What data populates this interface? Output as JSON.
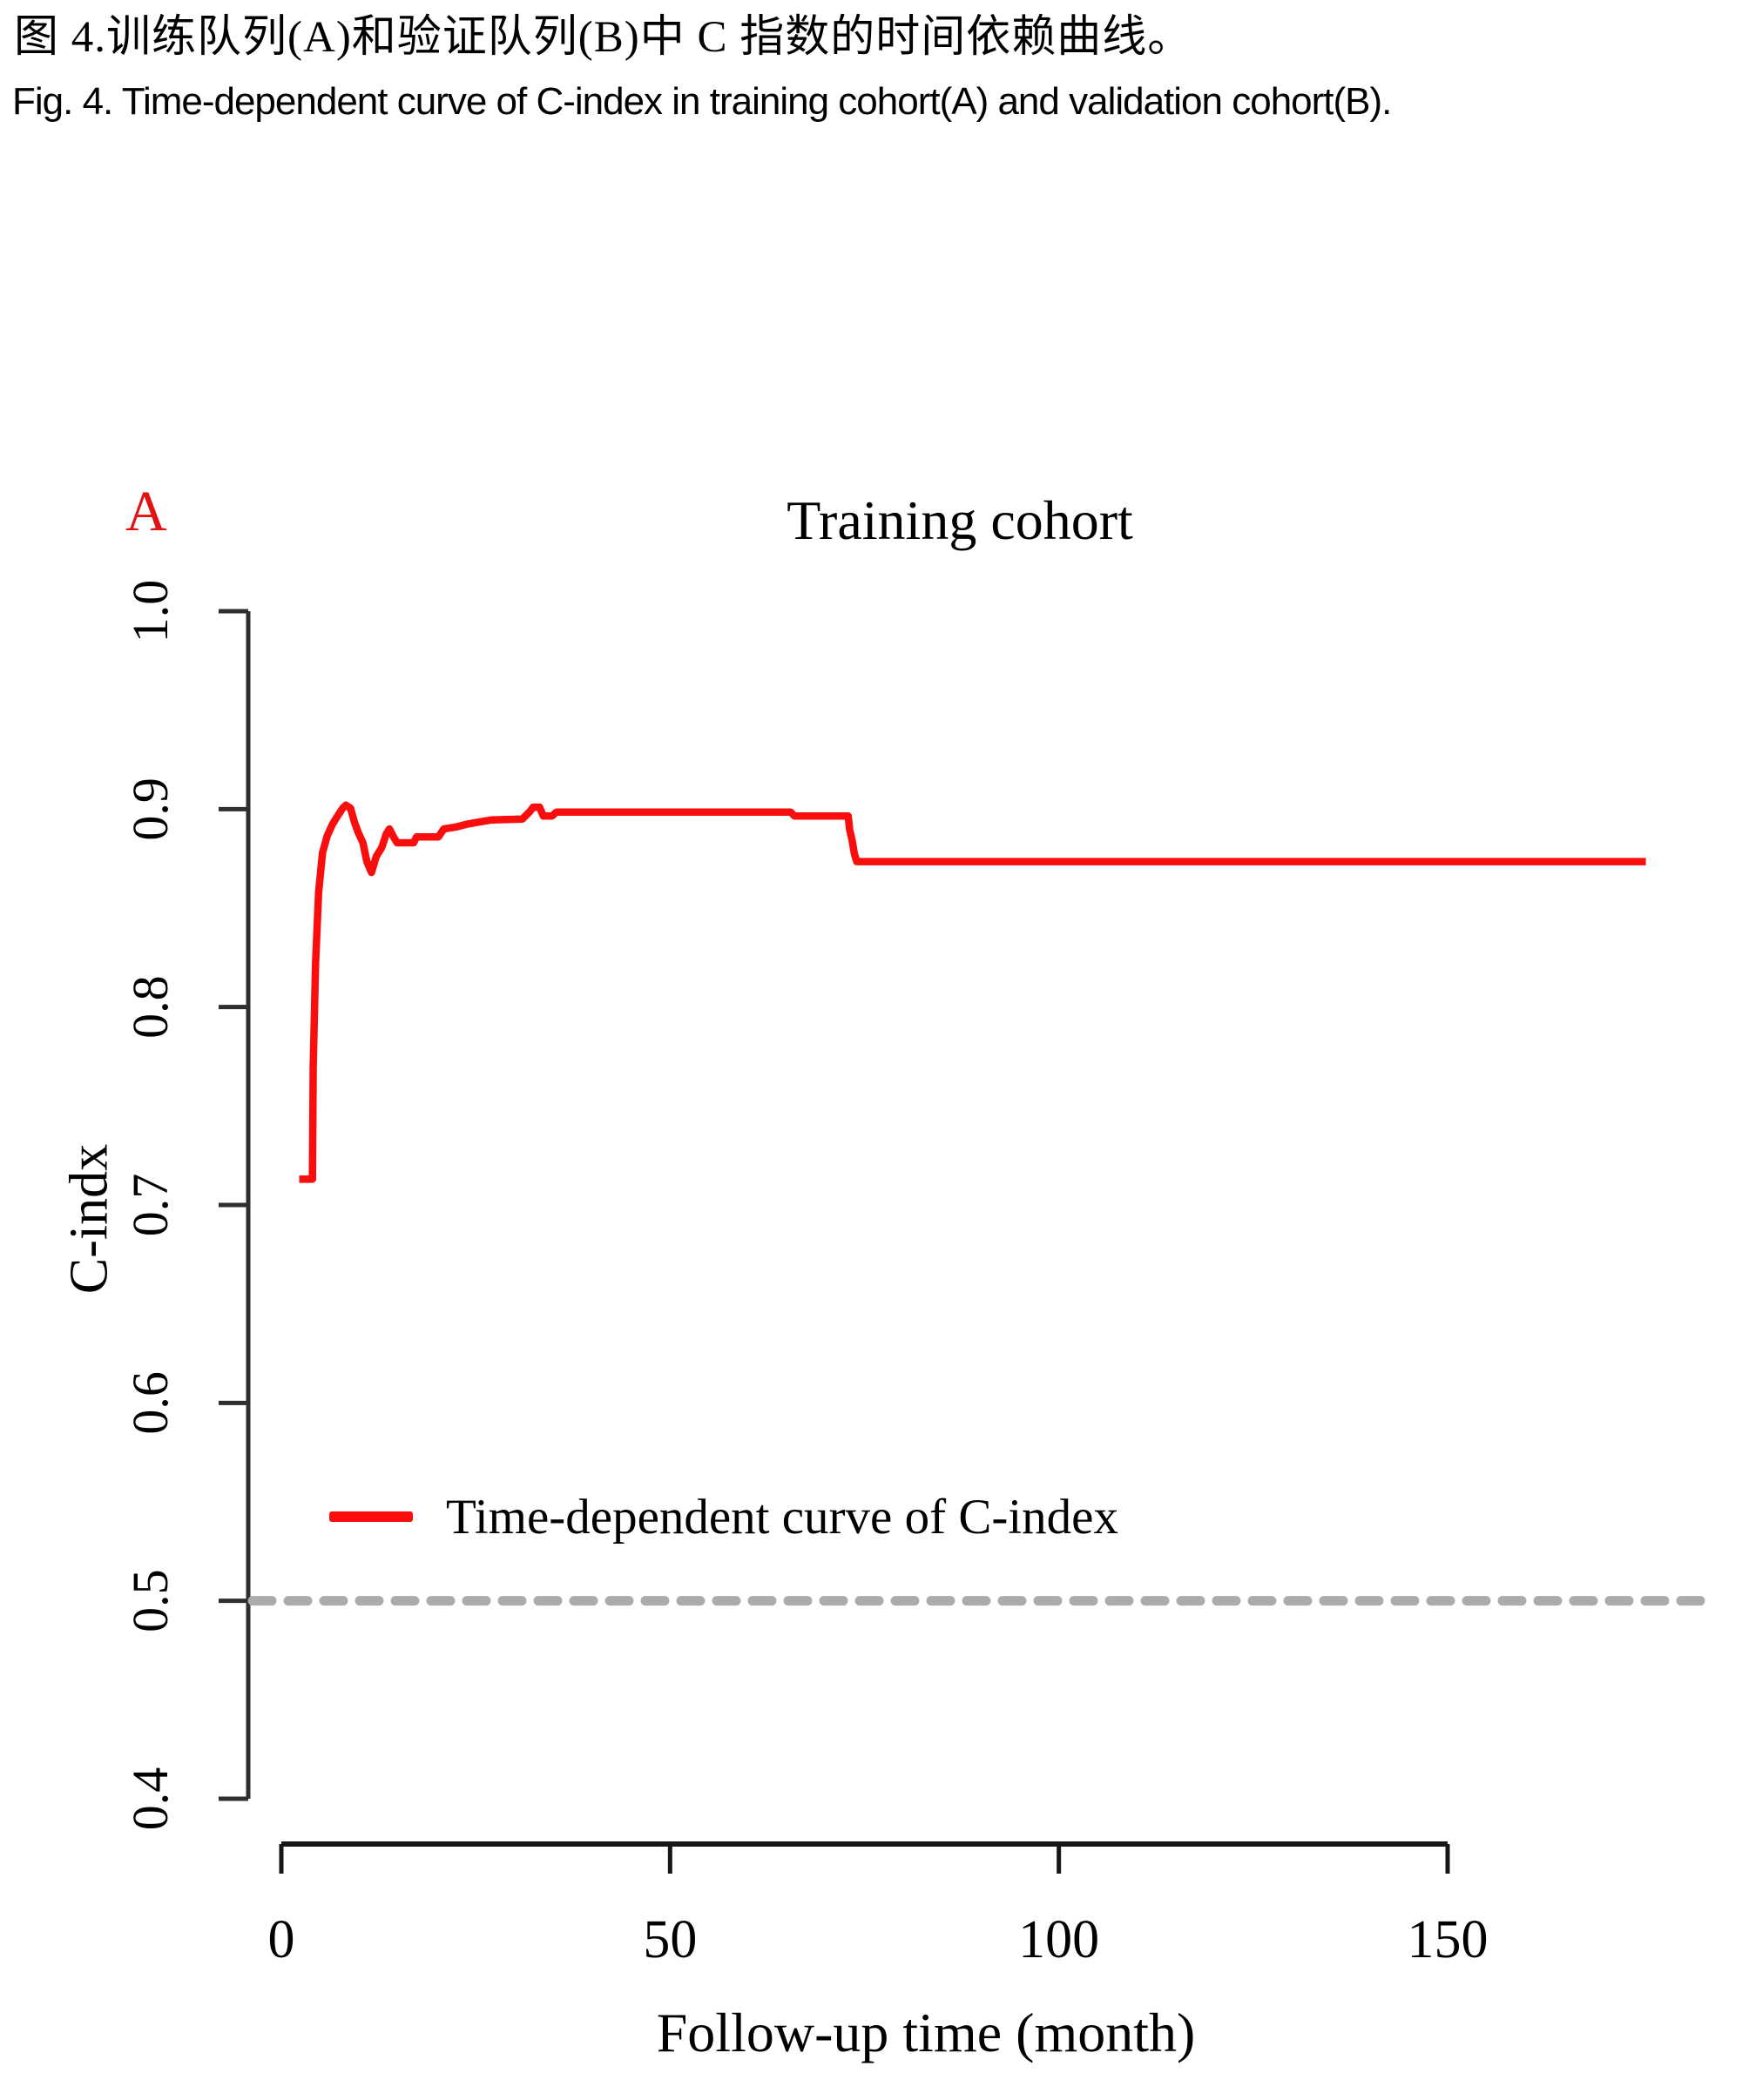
{
  "caption": {
    "zh": "图 4.训练队列(A)和验证队列(B)中 C 指数的时间依赖曲线。",
    "en": "Fig. 4. Time-dependent curve of C-index in training cohort(A) and validation cohort(B)."
  },
  "panel_label": "A",
  "colors": {
    "curve_red": "#f90d0d",
    "panel_letter_red": "#e11212",
    "axis": "#2e2e2e",
    "reference_dots": "#ababab"
  },
  "chart_data": {
    "type": "line",
    "title": "Training cohort",
    "xlabel": "Follow-up time (month)",
    "ylabel": "C-indx",
    "xlim": [
      0,
      178
    ],
    "ylim": [
      0.4,
      1.0
    ],
    "x_ticks": [
      0,
      50,
      100,
      150
    ],
    "y_ticks": [
      "1.0",
      "0.9",
      "0.8",
      "0.7",
      "0.6",
      "0.5",
      "0.4"
    ],
    "grid": false,
    "legend_position": "left-middle",
    "reference_line": {
      "y": 0.5,
      "style": "dotted",
      "color": "#ababab"
    },
    "legend": {
      "label": "Time-dependent curve of C-index",
      "color": "#f90d0d"
    },
    "series": [
      {
        "name": "Time-dependent curve of C-index",
        "color": "#f90d0d",
        "points": [
          [
            2.3,
            0.713
          ],
          [
            4.0,
            0.713
          ],
          [
            4.1,
            0.77
          ],
          [
            4.4,
            0.822
          ],
          [
            4.8,
            0.858
          ],
          [
            5.3,
            0.878
          ],
          [
            5.9,
            0.8865
          ],
          [
            6.6,
            0.8925
          ],
          [
            7.3,
            0.897
          ],
          [
            7.9,
            0.9005
          ],
          [
            8.3,
            0.902
          ],
          [
            8.9,
            0.9005
          ],
          [
            9.4,
            0.8935
          ],
          [
            9.9,
            0.888
          ],
          [
            10.5,
            0.883
          ],
          [
            11.0,
            0.8735
          ],
          [
            11.6,
            0.868
          ],
          [
            12.2,
            0.876
          ],
          [
            12.9,
            0.8805
          ],
          [
            13.5,
            0.8875
          ],
          [
            13.9,
            0.89
          ],
          [
            14.5,
            0.8855
          ],
          [
            14.9,
            0.883
          ],
          [
            17.0,
            0.883
          ],
          [
            17.4,
            0.886
          ],
          [
            20.2,
            0.886
          ],
          [
            20.9,
            0.89
          ],
          [
            22.5,
            0.891
          ],
          [
            24.0,
            0.8925
          ],
          [
            25.5,
            0.8935
          ],
          [
            27.0,
            0.8945
          ],
          [
            31.0,
            0.895
          ],
          [
            31.9,
            0.8985
          ],
          [
            32.4,
            0.901
          ],
          [
            33.2,
            0.901
          ],
          [
            33.7,
            0.8965
          ],
          [
            34.8,
            0.8965
          ],
          [
            35.4,
            0.8985
          ],
          [
            65.5,
            0.8985
          ],
          [
            66.0,
            0.8965
          ],
          [
            72.9,
            0.8965
          ],
          [
            73.1,
            0.8895
          ],
          [
            73.4,
            0.8845
          ],
          [
            73.7,
            0.8775
          ],
          [
            74.0,
            0.8735
          ],
          [
            175.5,
            0.8735
          ]
        ]
      }
    ]
  }
}
